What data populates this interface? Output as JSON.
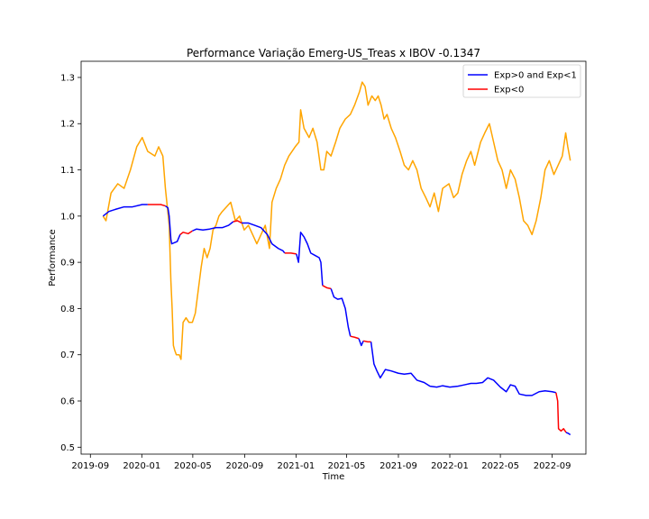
{
  "chart_data": {
    "type": "line",
    "title": "Performance Variação Emerg-US_Treas x IBOV -0.1347",
    "xlabel": "Time",
    "ylabel": "Performance",
    "xlim": [
      "2019-08-10",
      "2022-11-20"
    ],
    "ylim": [
      0.485,
      1.335
    ],
    "grid": false,
    "legend_position": "top-right",
    "x_ticks": [
      {
        "date": "2019-09-01",
        "label": "2019-09"
      },
      {
        "date": "2020-01-01",
        "label": "2020-01"
      },
      {
        "date": "2020-05-01",
        "label": "2020-05"
      },
      {
        "date": "2020-09-01",
        "label": "2020-09"
      },
      {
        "date": "2021-01-01",
        "label": "2021-01"
      },
      {
        "date": "2021-05-01",
        "label": "2021-05"
      },
      {
        "date": "2021-09-01",
        "label": "2021-09"
      },
      {
        "date": "2022-01-01",
        "label": "2022-01"
      },
      {
        "date": "2022-05-01",
        "label": "2022-05"
      },
      {
        "date": "2022-09-01",
        "label": "2022-09"
      }
    ],
    "y_ticks": [
      {
        "value": 0.5,
        "label": "0.5"
      },
      {
        "value": 0.6,
        "label": "0.6"
      },
      {
        "value": 0.7,
        "label": "0.7"
      },
      {
        "value": 0.8,
        "label": "0.8"
      },
      {
        "value": 0.9,
        "label": "0.9"
      },
      {
        "value": 1.0,
        "label": "1.0"
      },
      {
        "value": 1.1,
        "label": "1.1"
      },
      {
        "value": 1.2,
        "label": "1.2"
      },
      {
        "value": 1.3,
        "label": "1.3"
      }
    ],
    "colors": {
      "ibov": "#ffa500",
      "strategy_positive": "#0000ff",
      "strategy_negative": "#ff0000"
    },
    "legend": [
      {
        "label": "Exp>0 and Exp<1",
        "color": "#0000ff"
      },
      {
        "label": "Exp<0",
        "color": "#ff0000"
      }
    ],
    "series": [
      {
        "color": "#ffa500",
        "points": [
          [
            "2019-10-01",
            1.0
          ],
          [
            "2019-10-08",
            0.99
          ],
          [
            "2019-10-20",
            1.05
          ],
          [
            "2019-11-05",
            1.07
          ],
          [
            "2019-11-20",
            1.06
          ],
          [
            "2019-12-05",
            1.1
          ],
          [
            "2019-12-20",
            1.15
          ],
          [
            "2020-01-02",
            1.17
          ],
          [
            "2020-01-15",
            1.14
          ],
          [
            "2020-02-01",
            1.13
          ],
          [
            "2020-02-10",
            1.15
          ],
          [
            "2020-02-20",
            1.13
          ],
          [
            "2020-02-26",
            1.06
          ],
          [
            "2020-03-06",
            0.98
          ],
          [
            "2020-03-10",
            0.86
          ],
          [
            "2020-03-13",
            0.8
          ],
          [
            "2020-03-16",
            0.72
          ],
          [
            "2020-03-19",
            0.71
          ],
          [
            "2020-03-23",
            0.7
          ],
          [
            "2020-03-30",
            0.7
          ],
          [
            "2020-04-03",
            0.69
          ],
          [
            "2020-04-08",
            0.77
          ],
          [
            "2020-04-15",
            0.78
          ],
          [
            "2020-04-22",
            0.77
          ],
          [
            "2020-04-30",
            0.77
          ],
          [
            "2020-05-07",
            0.79
          ],
          [
            "2020-05-14",
            0.84
          ],
          [
            "2020-05-21",
            0.89
          ],
          [
            "2020-05-28",
            0.93
          ],
          [
            "2020-06-04",
            0.91
          ],
          [
            "2020-06-11",
            0.93
          ],
          [
            "2020-06-18",
            0.97
          ],
          [
            "2020-06-25",
            0.98
          ],
          [
            "2020-07-02",
            1.0
          ],
          [
            "2020-07-10",
            1.01
          ],
          [
            "2020-07-20",
            1.02
          ],
          [
            "2020-07-30",
            1.03
          ],
          [
            "2020-08-10",
            0.99
          ],
          [
            "2020-08-20",
            1.0
          ],
          [
            "2020-08-31",
            0.97
          ],
          [
            "2020-09-10",
            0.98
          ],
          [
            "2020-09-20",
            0.96
          ],
          [
            "2020-09-30",
            0.94
          ],
          [
            "2020-10-10",
            0.96
          ],
          [
            "2020-10-20",
            0.98
          ],
          [
            "2020-10-30",
            0.93
          ],
          [
            "2020-11-05",
            1.03
          ],
          [
            "2020-11-15",
            1.06
          ],
          [
            "2020-11-25",
            1.08
          ],
          [
            "2020-12-05",
            1.11
          ],
          [
            "2020-12-15",
            1.13
          ],
          [
            "2020-12-30",
            1.15
          ],
          [
            "2021-01-08",
            1.16
          ],
          [
            "2021-01-12",
            1.23
          ],
          [
            "2021-01-20",
            1.19
          ],
          [
            "2021-02-01",
            1.17
          ],
          [
            "2021-02-10",
            1.19
          ],
          [
            "2021-02-20",
            1.16
          ],
          [
            "2021-03-01",
            1.1
          ],
          [
            "2021-03-08",
            1.1
          ],
          [
            "2021-03-15",
            1.14
          ],
          [
            "2021-03-25",
            1.13
          ],
          [
            "2021-04-05",
            1.16
          ],
          [
            "2021-04-15",
            1.19
          ],
          [
            "2021-04-28",
            1.21
          ],
          [
            "2021-05-10",
            1.22
          ],
          [
            "2021-05-20",
            1.24
          ],
          [
            "2021-06-01",
            1.27
          ],
          [
            "2021-06-07",
            1.29
          ],
          [
            "2021-06-14",
            1.28
          ],
          [
            "2021-06-21",
            1.24
          ],
          [
            "2021-06-30",
            1.26
          ],
          [
            "2021-07-08",
            1.25
          ],
          [
            "2021-07-15",
            1.26
          ],
          [
            "2021-07-22",
            1.24
          ],
          [
            "2021-07-29",
            1.21
          ],
          [
            "2021-08-05",
            1.22
          ],
          [
            "2021-08-15",
            1.19
          ],
          [
            "2021-08-25",
            1.17
          ],
          [
            "2021-09-05",
            1.14
          ],
          [
            "2021-09-15",
            1.11
          ],
          [
            "2021-09-25",
            1.1
          ],
          [
            "2021-10-05",
            1.12
          ],
          [
            "2021-10-15",
            1.1
          ],
          [
            "2021-10-25",
            1.06
          ],
          [
            "2021-11-05",
            1.04
          ],
          [
            "2021-11-15",
            1.02
          ],
          [
            "2021-11-25",
            1.05
          ],
          [
            "2021-12-05",
            1.01
          ],
          [
            "2021-12-15",
            1.06
          ],
          [
            "2021-12-30",
            1.07
          ],
          [
            "2022-01-10",
            1.04
          ],
          [
            "2022-01-20",
            1.05
          ],
          [
            "2022-01-30",
            1.09
          ],
          [
            "2022-02-10",
            1.12
          ],
          [
            "2022-02-20",
            1.14
          ],
          [
            "2022-03-01",
            1.11
          ],
          [
            "2022-03-15",
            1.16
          ],
          [
            "2022-03-25",
            1.18
          ],
          [
            "2022-04-05",
            1.2
          ],
          [
            "2022-04-15",
            1.16
          ],
          [
            "2022-04-25",
            1.12
          ],
          [
            "2022-05-05",
            1.1
          ],
          [
            "2022-05-15",
            1.06
          ],
          [
            "2022-05-25",
            1.1
          ],
          [
            "2022-06-05",
            1.08
          ],
          [
            "2022-06-15",
            1.04
          ],
          [
            "2022-06-25",
            0.99
          ],
          [
            "2022-07-05",
            0.98
          ],
          [
            "2022-07-15",
            0.96
          ],
          [
            "2022-07-25",
            0.99
          ],
          [
            "2022-08-05",
            1.04
          ],
          [
            "2022-08-15",
            1.1
          ],
          [
            "2022-08-25",
            1.12
          ],
          [
            "2022-09-05",
            1.09
          ],
          [
            "2022-09-15",
            1.11
          ],
          [
            "2022-09-25",
            1.13
          ],
          [
            "2022-10-03",
            1.18
          ],
          [
            "2022-10-08",
            1.15
          ],
          [
            "2022-10-14",
            1.12
          ]
        ]
      },
      {
        "color": "#0000ff",
        "points": [
          [
            "2019-10-01",
            1.0
          ],
          [
            "2019-10-15",
            1.01
          ],
          [
            "2019-11-01",
            1.015
          ],
          [
            "2019-11-20",
            1.02
          ],
          [
            "2019-12-10",
            1.02
          ],
          [
            "2020-01-02",
            1.025
          ],
          [
            "2020-01-15",
            1.025
          ]
        ]
      },
      {
        "color": "#ff0000",
        "points": [
          [
            "2020-01-15",
            1.025
          ],
          [
            "2020-02-01",
            1.025
          ],
          [
            "2020-02-15",
            1.025
          ],
          [
            "2020-02-26",
            1.022
          ]
        ]
      },
      {
        "color": "#0000ff",
        "points": [
          [
            "2020-02-26",
            1.022
          ],
          [
            "2020-03-03",
            1.018
          ],
          [
            "2020-03-06",
            1.0
          ],
          [
            "2020-03-10",
            0.95
          ],
          [
            "2020-03-12",
            0.94
          ],
          [
            "2020-03-25",
            0.945
          ],
          [
            "2020-04-01",
            0.96
          ]
        ]
      },
      {
        "color": "#ff0000",
        "points": [
          [
            "2020-04-01",
            0.96
          ],
          [
            "2020-04-08",
            0.965
          ],
          [
            "2020-04-20",
            0.962
          ],
          [
            "2020-04-30",
            0.968
          ]
        ]
      },
      {
        "color": "#0000ff",
        "points": [
          [
            "2020-04-30",
            0.968
          ],
          [
            "2020-05-10",
            0.972
          ],
          [
            "2020-05-25",
            0.97
          ],
          [
            "2020-06-10",
            0.972
          ],
          [
            "2020-06-25",
            0.975
          ],
          [
            "2020-07-10",
            0.975
          ],
          [
            "2020-07-25",
            0.98
          ],
          [
            "2020-08-05",
            0.988
          ]
        ]
      },
      {
        "color": "#ff0000",
        "points": [
          [
            "2020-08-05",
            0.988
          ],
          [
            "2020-08-15",
            0.99
          ],
          [
            "2020-08-25",
            0.985
          ]
        ]
      },
      {
        "color": "#0000ff",
        "points": [
          [
            "2020-08-25",
            0.985
          ],
          [
            "2020-09-10",
            0.985
          ],
          [
            "2020-09-25",
            0.98
          ],
          [
            "2020-10-10",
            0.975
          ],
          [
            "2020-10-25",
            0.96
          ],
          [
            "2020-11-05",
            0.94
          ],
          [
            "2020-11-20",
            0.93
          ],
          [
            "2020-12-01",
            0.925
          ],
          [
            "2020-12-05",
            0.92
          ]
        ]
      },
      {
        "color": "#ff0000",
        "points": [
          [
            "2020-12-05",
            0.92
          ],
          [
            "2020-12-20",
            0.92
          ],
          [
            "2021-01-02",
            0.918
          ]
        ]
      },
      {
        "color": "#0000ff",
        "points": [
          [
            "2021-01-02",
            0.918
          ],
          [
            "2021-01-07",
            0.9
          ],
          [
            "2021-01-12",
            0.965
          ],
          [
            "2021-01-20",
            0.955
          ],
          [
            "2021-01-28",
            0.94
          ],
          [
            "2021-02-05",
            0.92
          ],
          [
            "2021-02-15",
            0.915
          ],
          [
            "2021-02-25",
            0.91
          ],
          [
            "2021-03-01",
            0.9
          ],
          [
            "2021-03-05",
            0.85
          ]
        ]
      },
      {
        "color": "#ff0000",
        "points": [
          [
            "2021-03-05",
            0.85
          ],
          [
            "2021-03-15",
            0.845
          ],
          [
            "2021-03-25",
            0.843
          ]
        ]
      },
      {
        "color": "#0000ff",
        "points": [
          [
            "2021-03-25",
            0.843
          ],
          [
            "2021-04-01",
            0.825
          ],
          [
            "2021-04-10",
            0.82
          ],
          [
            "2021-04-20",
            0.822
          ],
          [
            "2021-04-28",
            0.8
          ],
          [
            "2021-05-05",
            0.76
          ],
          [
            "2021-05-10",
            0.74
          ]
        ]
      },
      {
        "color": "#ff0000",
        "points": [
          [
            "2021-05-10",
            0.74
          ],
          [
            "2021-05-20",
            0.738
          ],
          [
            "2021-05-30",
            0.735
          ]
        ]
      },
      {
        "color": "#0000ff",
        "points": [
          [
            "2021-05-30",
            0.735
          ],
          [
            "2021-06-05",
            0.72
          ],
          [
            "2021-06-10",
            0.73
          ]
        ]
      },
      {
        "color": "#ff0000",
        "points": [
          [
            "2021-06-10",
            0.73
          ],
          [
            "2021-06-20",
            0.728
          ],
          [
            "2021-06-28",
            0.728
          ]
        ]
      },
      {
        "color": "#0000ff",
        "points": [
          [
            "2021-06-28",
            0.728
          ],
          [
            "2021-07-05",
            0.68
          ],
          [
            "2021-07-12",
            0.665
          ],
          [
            "2021-07-20",
            0.65
          ],
          [
            "2021-08-01",
            0.668
          ],
          [
            "2021-08-15",
            0.665
          ],
          [
            "2021-09-01",
            0.66
          ],
          [
            "2021-09-15",
            0.658
          ],
          [
            "2021-10-01",
            0.66
          ],
          [
            "2021-10-15",
            0.645
          ],
          [
            "2021-11-01",
            0.64
          ],
          [
            "2021-11-15",
            0.632
          ],
          [
            "2021-12-01",
            0.63
          ],
          [
            "2021-12-15",
            0.633
          ],
          [
            "2022-01-01",
            0.63
          ],
          [
            "2022-01-20",
            0.632
          ],
          [
            "2022-02-05",
            0.635
          ],
          [
            "2022-02-20",
            0.638
          ],
          [
            "2022-03-05",
            0.638
          ],
          [
            "2022-03-20",
            0.64
          ],
          [
            "2022-04-01",
            0.65
          ],
          [
            "2022-04-15",
            0.645
          ],
          [
            "2022-05-01",
            0.63
          ],
          [
            "2022-05-15",
            0.62
          ],
          [
            "2022-05-25",
            0.635
          ],
          [
            "2022-06-05",
            0.632
          ],
          [
            "2022-06-15",
            0.615
          ],
          [
            "2022-07-01",
            0.612
          ],
          [
            "2022-07-15",
            0.612
          ],
          [
            "2022-08-01",
            0.62
          ],
          [
            "2022-08-15",
            0.622
          ],
          [
            "2022-09-01",
            0.62
          ],
          [
            "2022-09-10",
            0.618
          ]
        ]
      },
      {
        "color": "#ff0000",
        "points": [
          [
            "2022-09-10",
            0.618
          ],
          [
            "2022-09-14",
            0.6
          ],
          [
            "2022-09-16",
            0.54
          ],
          [
            "2022-09-22",
            0.535
          ],
          [
            "2022-09-28",
            0.54
          ],
          [
            "2022-10-04",
            0.532
          ]
        ]
      },
      {
        "color": "#0000ff",
        "points": [
          [
            "2022-10-04",
            0.532
          ],
          [
            "2022-10-09",
            0.53
          ],
          [
            "2022-10-14",
            0.527
          ]
        ]
      }
    ]
  }
}
